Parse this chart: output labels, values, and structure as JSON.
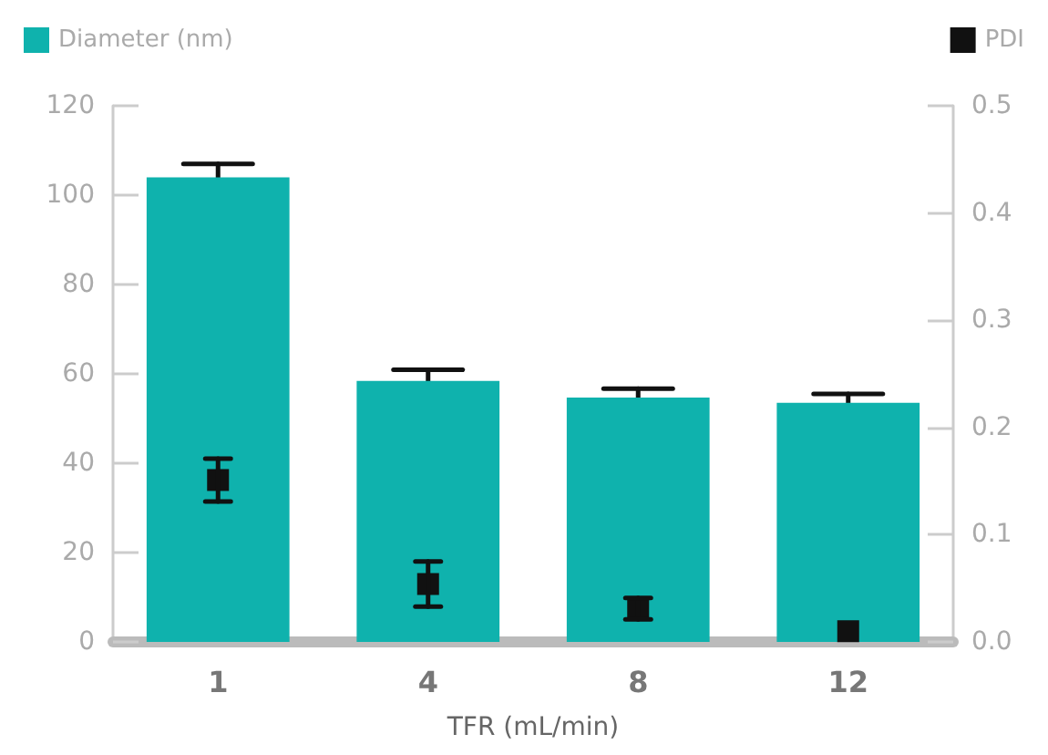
{
  "chart_data": {
    "type": "bar",
    "xlabel": "TFR (mL/min)",
    "categories": [
      "1",
      "4",
      "8",
      "12"
    ],
    "series": [
      {
        "name": "Diameter (nm)",
        "color": "#0fb2ad",
        "values": [
          104,
          58.4,
          54.7,
          53.5
        ],
        "errors": [
          3,
          2.5,
          2,
          2
        ]
      },
      {
        "name": "PDI",
        "type": "scatter",
        "axis": "y2",
        "color": "#111111",
        "values": [
          0.151,
          0.054,
          0.031,
          0.01
        ],
        "errors": [
          0.02,
          0.021,
          0.01,
          null
        ]
      }
    ],
    "ylim": [
      0,
      120
    ],
    "yticks": [
      0,
      20,
      40,
      60,
      80,
      100,
      120
    ],
    "y2lim": [
      0,
      0.5
    ],
    "y2ticks": [
      {
        "value": 0,
        "label": "0.0"
      },
      0.1,
      0.2,
      0.3,
      0.4,
      0.5
    ],
    "marker": "square",
    "grid": false,
    "legend": "top"
  }
}
